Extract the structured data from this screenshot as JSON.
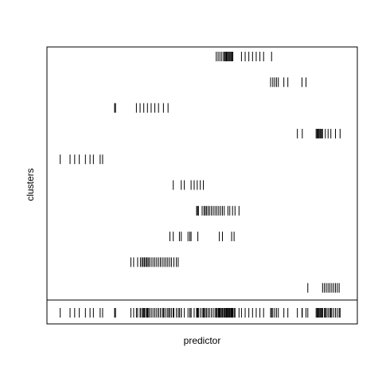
{
  "chart_data": {
    "type": "stripchart",
    "xlabel": "predictor",
    "ylabel": "clusters",
    "marker": "vertical-tick",
    "mark_color": "#000000",
    "background": "#ffffff",
    "axes_ticks_shown": false,
    "xlim": [
      0,
      100
    ],
    "clusters": [
      {
        "values": [
          54.6,
          55.2,
          55.8,
          56.4,
          57.0,
          57.3,
          57.6,
          57.9,
          58.2,
          58.5,
          58.8,
          59.1,
          59.4,
          59.7,
          60.0,
          62.8,
          64.0,
          65.2,
          66.4,
          67.6,
          68.8,
          70.0,
          72.6
        ]
      },
      {
        "values": [
          72.3,
          73.0,
          73.6,
          74.2,
          74.8,
          76.6,
          77.9,
          82.5,
          83.8
        ]
      },
      {
        "values": [
          21.5,
          21.8,
          28.6,
          29.8,
          31.0,
          32.2,
          33.4,
          34.6,
          35.8,
          37.4,
          38.9
        ]
      },
      {
        "values": [
          81.0,
          82.6,
          87.1,
          87.4,
          87.7,
          88.0,
          88.3,
          88.6,
          88.9,
          89.2,
          90.1,
          91.0,
          91.9,
          93.4,
          94.9
        ]
      },
      {
        "values": [
          3.8,
          7.0,
          8.5,
          10.0,
          12.0,
          13.5,
          14.6,
          16.8,
          17.6
        ]
      },
      {
        "values": [
          40.6,
          43.2,
          44.2,
          46.4,
          47.4,
          48.4,
          49.4,
          50.4
        ]
      },
      {
        "values": [
          48.2,
          48.5,
          48.8,
          50.0,
          50.6,
          51.0,
          51.4,
          51.9,
          52.4,
          53.0,
          53.6,
          54.2,
          54.8,
          55.4,
          56.0,
          56.6,
          57.2,
          58.4,
          59.0,
          59.9,
          60.7,
          62.0
        ]
      },
      {
        "values": [
          39.5,
          40.6,
          42.6,
          43.2,
          45.4,
          46.0,
          46.4,
          48.6,
          55.6,
          56.6,
          59.6,
          60.4
        ]
      },
      {
        "values": [
          26.8,
          27.7,
          29.0,
          29.9,
          30.4,
          30.8,
          31.2,
          31.6,
          32.0,
          32.4,
          32.8,
          33.4,
          34.0,
          34.6,
          35.2,
          35.8,
          36.4,
          37.0,
          37.6,
          38.2,
          38.8,
          39.4,
          40.0,
          40.8,
          41.6,
          42.2
        ]
      },
      {
        "values": [
          84.4,
          89.2,
          89.8,
          90.4,
          91.0,
          91.6,
          92.2,
          92.8,
          93.4,
          94.0,
          94.6
        ]
      }
    ],
    "combined_strip": true
  }
}
